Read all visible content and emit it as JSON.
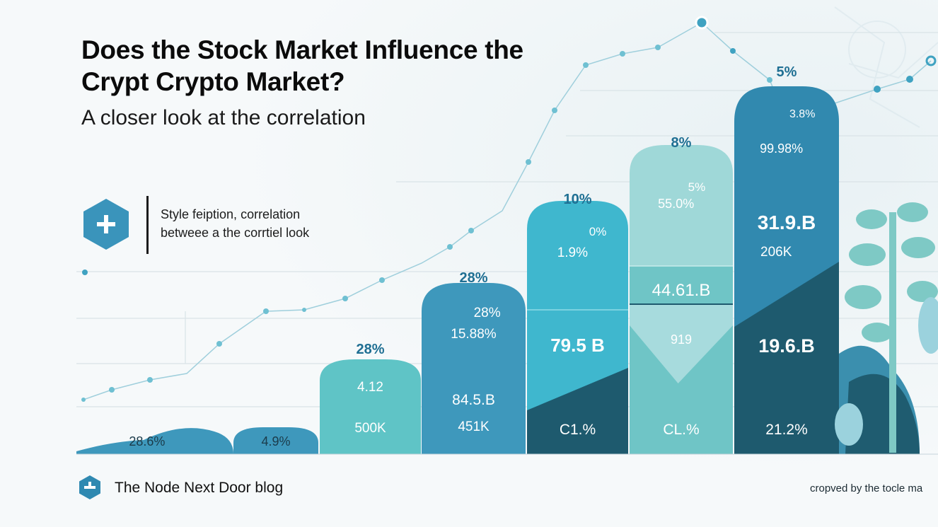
{
  "header": {
    "title": "Does the Stock Market Influence the Crypt Crypto Market?",
    "subtitle": "A closer look at the correlation"
  },
  "callout": {
    "icon": "plus-hexagon-icon",
    "line1": "Style feiption, correlation",
    "line2": "betweee a the corrtiel look"
  },
  "footer": {
    "icon": "node-hexagon-icon",
    "brand": "The Node Next Door blog",
    "credit": "cropved by the tocle ma"
  },
  "colors": {
    "teal_light": "#5fc4c6",
    "teal": "#3fb7ce",
    "blue": "#3e98bc",
    "blue_mid": "#3189af",
    "navy": "#1e5a6e",
    "mint": "#9fd8d8",
    "text_white": "#ffffff",
    "label_blue": "#1f6f93"
  },
  "chart_data": {
    "type": "bar",
    "title": "",
    "xlabel": "",
    "ylabel": "",
    "grid": true,
    "legend": "none",
    "bars": [
      {
        "top_label": "",
        "labels": [
          "28.6%"
        ]
      },
      {
        "top_label": "",
        "labels": [
          "4.9%"
        ]
      },
      {
        "top_label": "28%",
        "labels": [
          "4.12",
          "500K"
        ]
      },
      {
        "top_label": "28%",
        "labels": [
          "28%",
          "15.88%",
          "84.5.B",
          "451K"
        ]
      },
      {
        "top_label": "10%",
        "labels": [
          "0%",
          "1.9%",
          "79.5 B",
          "C1.%"
        ]
      },
      {
        "top_label": "8%",
        "labels": [
          "5%",
          "55.0%",
          "44.61.B",
          "919",
          "CL.%"
        ]
      },
      {
        "top_label": "5%",
        "labels": [
          "3.8%",
          "99.98%",
          "31.9.B",
          "206K",
          "19.6.B",
          "21.2%"
        ]
      }
    ],
    "trend_line": {
      "name": "",
      "shown": true
    }
  }
}
